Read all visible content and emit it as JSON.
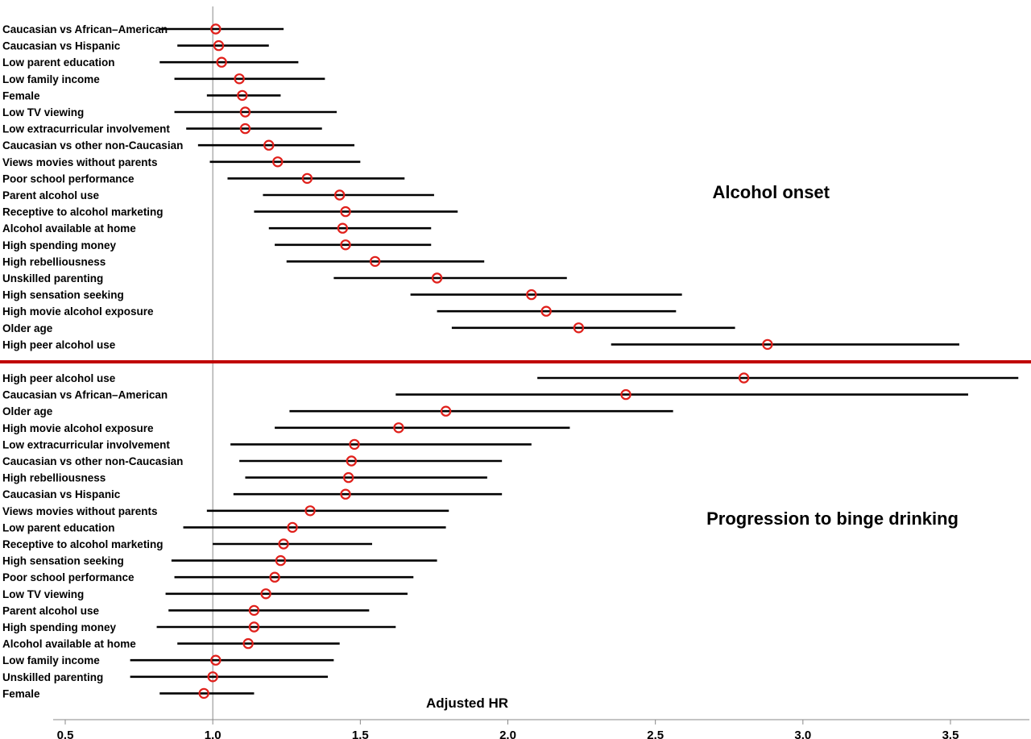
{
  "chart_data": {
    "type": "forest",
    "xlabel": "Adjusted HR",
    "xlim": [
      0.5,
      3.75
    ],
    "x_ticks": [
      "0.5",
      "1.0",
      "1.5",
      "2.0",
      "2.5",
      "3.0",
      "3.5"
    ],
    "reference_line": 1.0,
    "colors": {
      "point": "#e0201b",
      "ci": "#000000",
      "divider": "#c00000",
      "reference": "#888888"
    },
    "panels": [
      {
        "title": "Alcohol onset",
        "rows": [
          {
            "label": "Caucasian vs African–American",
            "hr": 1.01,
            "lo": 0.82,
            "hi": 1.24
          },
          {
            "label": "Caucasian vs Hispanic",
            "hr": 1.02,
            "lo": 0.88,
            "hi": 1.19
          },
          {
            "label": "Low parent education",
            "hr": 1.03,
            "lo": 0.82,
            "hi": 1.29
          },
          {
            "label": "Low family income",
            "hr": 1.09,
            "lo": 0.87,
            "hi": 1.38
          },
          {
            "label": "Female",
            "hr": 1.1,
            "lo": 0.98,
            "hi": 1.23
          },
          {
            "label": "Low TV viewing",
            "hr": 1.11,
            "lo": 0.87,
            "hi": 1.42
          },
          {
            "label": "Low extracurricular involvement",
            "hr": 1.11,
            "lo": 0.91,
            "hi": 1.37
          },
          {
            "label": "Caucasian vs other non-Caucasian",
            "hr": 1.19,
            "lo": 0.95,
            "hi": 1.48
          },
          {
            "label": "Views movies without parents",
            "hr": 1.22,
            "lo": 0.99,
            "hi": 1.5
          },
          {
            "label": "Poor school performance",
            "hr": 1.32,
            "lo": 1.05,
            "hi": 1.65
          },
          {
            "label": "Parent alcohol use",
            "hr": 1.43,
            "lo": 1.17,
            "hi": 1.75
          },
          {
            "label": "Receptive to alcohol marketing",
            "hr": 1.45,
            "lo": 1.14,
            "hi": 1.83
          },
          {
            "label": "Alcohol available at home",
            "hr": 1.44,
            "lo": 1.19,
            "hi": 1.74
          },
          {
            "label": "High spending money",
            "hr": 1.45,
            "lo": 1.21,
            "hi": 1.74
          },
          {
            "label": "High rebelliousness",
            "hr": 1.55,
            "lo": 1.25,
            "hi": 1.92
          },
          {
            "label": "Unskilled parenting",
            "hr": 1.76,
            "lo": 1.41,
            "hi": 2.2
          },
          {
            "label": "High sensation seeking",
            "hr": 2.08,
            "lo": 1.67,
            "hi": 2.59
          },
          {
            "label": "High movie alcohol exposure",
            "hr": 2.13,
            "lo": 1.76,
            "hi": 2.57
          },
          {
            "label": "Older age",
            "hr": 2.24,
            "lo": 1.81,
            "hi": 2.77
          },
          {
            "label": "High peer alcohol use",
            "hr": 2.88,
            "lo": 2.35,
            "hi": 3.53
          }
        ]
      },
      {
        "title": "Progression to binge drinking",
        "rows": [
          {
            "label": "High peer alcohol use",
            "hr": 2.8,
            "lo": 2.1,
            "hi": 3.73
          },
          {
            "label": "Caucasian vs African–American",
            "hr": 2.4,
            "lo": 1.62,
            "hi": 3.56
          },
          {
            "label": "Older age",
            "hr": 1.79,
            "lo": 1.26,
            "hi": 2.56
          },
          {
            "label": "High movie alcohol exposure",
            "hr": 1.63,
            "lo": 1.21,
            "hi": 2.21
          },
          {
            "label": "Low extracurricular involvement",
            "hr": 1.48,
            "lo": 1.06,
            "hi": 2.08
          },
          {
            "label": "Caucasian vs other non-Caucasian",
            "hr": 1.47,
            "lo": 1.09,
            "hi": 1.98
          },
          {
            "label": "High rebelliousness",
            "hr": 1.46,
            "lo": 1.11,
            "hi": 1.93
          },
          {
            "label": "Caucasian vs Hispanic",
            "hr": 1.45,
            "lo": 1.07,
            "hi": 1.98
          },
          {
            "label": "Views movies without parents",
            "hr": 1.33,
            "lo": 0.98,
            "hi": 1.8
          },
          {
            "label": "Low parent education",
            "hr": 1.27,
            "lo": 0.9,
            "hi": 1.79
          },
          {
            "label": "Receptive to alcohol marketing",
            "hr": 1.24,
            "lo": 1.0,
            "hi": 1.54
          },
          {
            "label": "High sensation seeking",
            "hr": 1.23,
            "lo": 0.86,
            "hi": 1.76
          },
          {
            "label": "Poor school performance",
            "hr": 1.21,
            "lo": 0.87,
            "hi": 1.68
          },
          {
            "label": "Low TV viewing",
            "hr": 1.18,
            "lo": 0.84,
            "hi": 1.66
          },
          {
            "label": "Parent alcohol use",
            "hr": 1.14,
            "lo": 0.85,
            "hi": 1.53
          },
          {
            "label": "High spending money",
            "hr": 1.14,
            "lo": 0.81,
            "hi": 1.62
          },
          {
            "label": "Alcohol available at home",
            "hr": 1.12,
            "lo": 0.88,
            "hi": 1.43
          },
          {
            "label": "Low  family income",
            "hr": 1.01,
            "lo": 0.72,
            "hi": 1.41
          },
          {
            "label": "Unskilled parenting",
            "hr": 1.0,
            "lo": 0.72,
            "hi": 1.39
          },
          {
            "label": "Female",
            "hr": 0.97,
            "lo": 0.82,
            "hi": 1.14
          }
        ]
      }
    ]
  }
}
